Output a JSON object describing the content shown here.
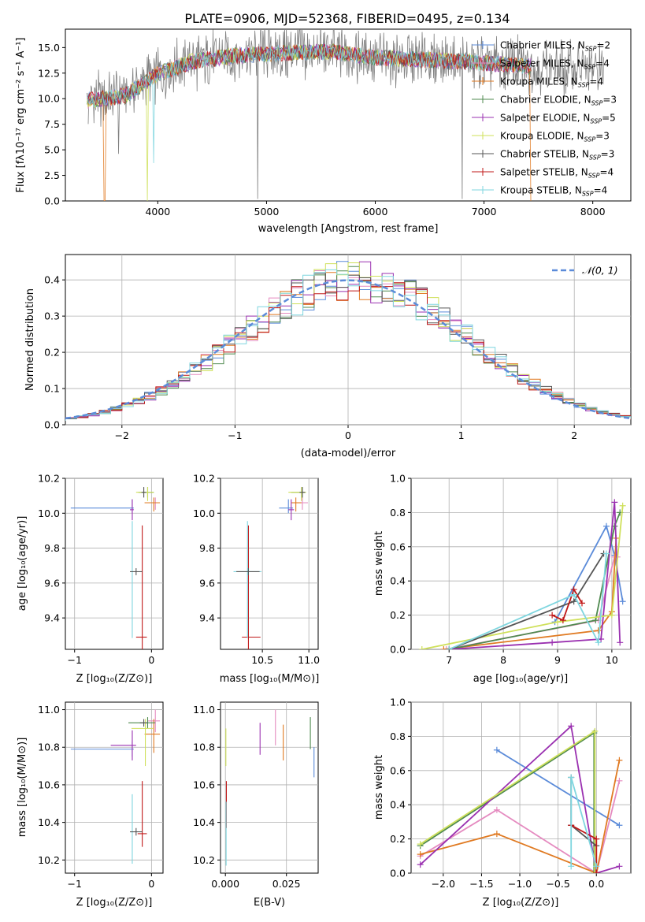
{
  "figure_title": "PLATE=0906, MJD=52368, FIBERID=0495, z=0.134",
  "models": [
    {
      "label": "Chabrier MILES, N",
      "sub": "SSP",
      "suffix": "=2",
      "color": "#5b8bd9"
    },
    {
      "label": "Salpeter MILES, N",
      "sub": "SSP",
      "suffix": "=4",
      "color": "#e58bc0"
    },
    {
      "label": "Kroupa MILES, N",
      "sub": "SSP",
      "suffix": "=4",
      "color": "#e07a22"
    },
    {
      "label": "Chabrier ELODIE, N",
      "sub": "SSP",
      "suffix": "=3",
      "color": "#4f8a4f"
    },
    {
      "label": "Salpeter ELODIE, N",
      "sub": "SSP",
      "suffix": "=5",
      "color": "#9a30b0"
    },
    {
      "label": "Kroupa ELODIE, N",
      "sub": "SSP",
      "suffix": "=3",
      "color": "#cfe05a"
    },
    {
      "label": "Chabrier STELIB, N",
      "sub": "SSP",
      "suffix": "=3",
      "color": "#555555"
    },
    {
      "label": "Salpeter STELIB, N",
      "sub": "SSP",
      "suffix": "=4",
      "color": "#c01818"
    },
    {
      "label": "Kroupa STELIB, N",
      "sub": "SSP",
      "suffix": "=4",
      "color": "#7fd6df"
    }
  ],
  "chart_data": [
    {
      "id": "spectrum",
      "type": "line",
      "title": "PLATE=0906, MJD=52368, FIBERID=0495, z=0.134",
      "xlabel": "wavelength [Angstrom, rest frame]",
      "ylabel": "Flux [fλ10⁻¹⁷ erg cm⁻² s⁻¹ A⁻¹]",
      "xlim": [
        3150,
        8350
      ],
      "ylim": [
        0,
        16.8
      ],
      "xticks": [
        4000,
        5000,
        6000,
        7000,
        8000
      ],
      "yticks": [
        0.0,
        2.5,
        5.0,
        7.5,
        10.0,
        12.5,
        15.0
      ],
      "data_color": "#808080",
      "data_range": [
        3360,
        8100
      ],
      "model_range": [
        3350,
        7430
      ],
      "continuum": [
        [
          3360,
          9.8
        ],
        [
          3700,
          10.3
        ],
        [
          4000,
          12.4
        ],
        [
          4300,
          13.6
        ],
        [
          4700,
          14.2
        ],
        [
          5200,
          14.5
        ],
        [
          5600,
          14.6
        ],
        [
          6000,
          14.0
        ],
        [
          6500,
          13.8
        ],
        [
          7000,
          13.5
        ],
        [
          7500,
          13.1
        ],
        [
          8100,
          12.8
        ]
      ],
      "legend_position": "right"
    },
    {
      "id": "residuals",
      "type": "histogram",
      "xlabel": "(data-model)/error",
      "ylabel": "Normed distribution",
      "xlim": [
        -2.5,
        2.5
      ],
      "ylim": [
        0,
        0.47
      ],
      "xticks": [
        -2,
        -1,
        0,
        1,
        2
      ],
      "yticks": [
        0.0,
        0.1,
        0.2,
        0.3,
        0.4
      ],
      "bin_width": 0.1,
      "reference_label": "𝒩(0, 1)",
      "reference_color": "#5b8bd9",
      "legend_position": "top-right",
      "grid": true
    },
    {
      "id": "age-vs-Z",
      "type": "errorbar",
      "xlabel": "Z [log₁₀(Z/Z⊙)]",
      "ylabel": "age  [log₁₀(age/yr)]",
      "xlim": [
        -1.12,
        0.15
      ],
      "ylim": [
        9.22,
        10.2
      ],
      "xticks": [
        -1,
        0
      ],
      "yticks": [
        9.4,
        9.6,
        9.8,
        10.0,
        10.2
      ],
      "points": [
        {
          "m": 0,
          "x": -0.25,
          "y": 10.03,
          "xerr": [
            0.8,
            0.02
          ],
          "yerr": [
            0.03,
            0.05
          ]
        },
        {
          "m": 1,
          "x": 0.05,
          "y": 10.06,
          "xerr": [
            0.1,
            0.06
          ],
          "yerr": [
            0.04,
            0.03
          ]
        },
        {
          "m": 2,
          "x": 0.03,
          "y": 10.06,
          "xerr": [
            0.12,
            0.08
          ],
          "yerr": [
            0.05,
            0.03
          ]
        },
        {
          "m": 3,
          "x": -0.05,
          "y": 10.12,
          "xerr": [
            0.12,
            0.08
          ],
          "yerr": [
            0.03,
            0.03
          ]
        },
        {
          "m": 4,
          "x": -0.25,
          "y": 10.02,
          "xerr": [
            0.03,
            0.02
          ],
          "yerr": [
            0.06,
            0.06
          ]
        },
        {
          "m": 5,
          "x": -0.05,
          "y": 10.12,
          "xerr": [
            0.15,
            0.08
          ],
          "yerr": [
            0.05,
            0.03
          ]
        },
        {
          "m": 6,
          "x": -0.1,
          "y": 10.12,
          "xerr": [
            0.03,
            0.03
          ],
          "yerr": [
            0.03,
            0.03
          ]
        },
        {
          "m": 7,
          "x": -0.12,
          "y": 9.29,
          "xerr": [
            0.08,
            0.06
          ],
          "yerr": [
            0.2,
            0.64
          ]
        },
        {
          "m": 8,
          "x": -0.25,
          "y": 9.665,
          "xerr": [
            0.02,
            0.02
          ],
          "yerr": [
            0.38,
            0.29
          ]
        },
        {
          "m": 6,
          "x": -0.2,
          "y": 9.665,
          "xerr": [
            0.08,
            0.08
          ],
          "yerr": [
            0.02,
            0.02
          ]
        }
      ]
    },
    {
      "id": "age-vs-mass",
      "type": "errorbar",
      "xlabel": "mass [log₁₀(M/M⊙)]",
      "ylabel": "",
      "xlim": [
        10.05,
        11.1
      ],
      "ylim": [
        9.22,
        10.2
      ],
      "xticks": [
        10.5,
        11.0
      ],
      "yticks": [
        9.4,
        9.6,
        9.8,
        10.0,
        10.2
      ],
      "points": [
        {
          "m": 0,
          "x": 10.78,
          "y": 10.03,
          "xerr": [
            0.1,
            0.05
          ],
          "yerr": [
            0.03,
            0.05
          ]
        },
        {
          "m": 1,
          "x": 10.93,
          "y": 10.06,
          "xerr": [
            0.1,
            0.06
          ],
          "yerr": [
            0.04,
            0.03
          ]
        },
        {
          "m": 2,
          "x": 10.86,
          "y": 10.06,
          "xerr": [
            0.05,
            0.06
          ],
          "yerr": [
            0.05,
            0.03
          ]
        },
        {
          "m": 3,
          "x": 10.93,
          "y": 10.12,
          "xerr": [
            0.12,
            0.03
          ],
          "yerr": [
            0.03,
            0.03
          ]
        },
        {
          "m": 4,
          "x": 10.81,
          "y": 10.02,
          "xerr": [
            0.03,
            0.03
          ],
          "yerr": [
            0.06,
            0.06
          ]
        },
        {
          "m": 5,
          "x": 10.92,
          "y": 10.12,
          "xerr": [
            0.14,
            0.05
          ],
          "yerr": [
            0.05,
            0.03
          ]
        },
        {
          "m": 6,
          "x": 10.93,
          "y": 10.12,
          "xerr": [
            0.03,
            0.03
          ],
          "yerr": [
            0.03,
            0.03
          ]
        },
        {
          "m": 7,
          "x": 10.35,
          "y": 9.29,
          "xerr": [
            0.07,
            0.13
          ],
          "yerr": [
            0.2,
            0.64
          ]
        },
        {
          "m": 8,
          "x": 10.34,
          "y": 9.665,
          "xerr": [
            0.15,
            0.15
          ],
          "yerr": [
            0.38,
            0.29
          ]
        },
        {
          "m": 6,
          "x": 10.35,
          "y": 9.665,
          "xerr": [
            0.13,
            0.12
          ],
          "yerr": [
            0.02,
            0.02
          ]
        }
      ]
    },
    {
      "id": "weight-vs-age",
      "type": "line",
      "xlabel": "age  [log₁₀(age/yr)]",
      "ylabel": "mass weight",
      "xlim": [
        6.3,
        10.35
      ],
      "ylim": [
        0,
        1.0
      ],
      "xticks": [
        7,
        8,
        9,
        10
      ],
      "yticks": [
        0.0,
        0.2,
        0.4,
        0.6,
        0.8,
        1.0
      ],
      "grid": true,
      "series": [
        {
          "m": 0,
          "points": [
            [
              8.95,
              0.16
            ],
            [
              9.9,
              0.72
            ],
            [
              10.05,
              0.55
            ],
            [
              10.2,
              0.28
            ]
          ]
        },
        {
          "m": 1,
          "points": [
            [
              6.95,
              0.0
            ],
            [
              9.75,
              0.17
            ],
            [
              10.05,
              0.54
            ],
            [
              10.1,
              0.54
            ]
          ]
        },
        {
          "m": 2,
          "points": [
            [
              6.9,
              0.0
            ],
            [
              9.75,
              0.11
            ],
            [
              10.0,
              0.22
            ],
            [
              10.08,
              0.65
            ]
          ]
        },
        {
          "m": 3,
          "points": [
            [
              7.0,
              0.0
            ],
            [
              9.7,
              0.17
            ],
            [
              10.05,
              0.72
            ],
            [
              10.15,
              0.8
            ]
          ]
        },
        {
          "m": 4,
          "points": [
            [
              7.0,
              0.0
            ],
            [
              8.9,
              0.04
            ],
            [
              9.8,
              0.06
            ],
            [
              10.05,
              0.86
            ],
            [
              10.15,
              0.04
            ]
          ]
        },
        {
          "m": 5,
          "points": [
            [
              6.5,
              0.0
            ],
            [
              9.0,
              0.16
            ],
            [
              10.0,
              0.2
            ],
            [
              10.2,
              0.84
            ]
          ]
        },
        {
          "m": 6,
          "points": [
            [
              7.0,
              0.0
            ],
            [
              9.3,
              0.28
            ],
            [
              9.85,
              0.56
            ]
          ]
        },
        {
          "m": 7,
          "points": [
            [
              8.9,
              0.2
            ],
            [
              9.1,
              0.17
            ],
            [
              9.3,
              0.35
            ],
            [
              9.45,
              0.27
            ]
          ]
        },
        {
          "m": 8,
          "points": [
            [
              7.0,
              0.0
            ],
            [
              9.3,
              0.32
            ],
            [
              9.75,
              0.04
            ],
            [
              9.9,
              0.56
            ]
          ]
        }
      ]
    },
    {
      "id": "mass-vs-Z",
      "type": "errorbar",
      "xlabel": "Z [log₁₀(Z/Z⊙)]",
      "ylabel": "mass [log₁₀(M/M⊙)]",
      "xlim": [
        -1.12,
        0.15
      ],
      "ylim": [
        10.13,
        11.04
      ],
      "xticks": [
        -1,
        0
      ],
      "yticks": [
        10.2,
        10.4,
        10.6,
        10.8,
        11.0
      ],
      "points": [
        {
          "m": 0,
          "x": -0.25,
          "y": 10.79,
          "xerr": [
            0.8,
            0.02
          ],
          "yerr": [
            0.04,
            0.04
          ]
        },
        {
          "m": 1,
          "x": 0.05,
          "y": 10.94,
          "xerr": [
            0.1,
            0.06
          ],
          "yerr": [
            0.06,
            0.06
          ]
        },
        {
          "m": 2,
          "x": 0.03,
          "y": 10.87,
          "xerr": [
            0.12,
            0.08
          ],
          "yerr": [
            0.1,
            0.08
          ]
        },
        {
          "m": 3,
          "x": -0.05,
          "y": 10.93,
          "xerr": [
            0.25,
            0.1
          ],
          "yerr": [
            0.03,
            0.03
          ]
        },
        {
          "m": 4,
          "x": -0.25,
          "y": 10.81,
          "xerr": [
            0.28,
            0.05
          ],
          "yerr": [
            0.08,
            0.08
          ]
        },
        {
          "m": 5,
          "x": -0.08,
          "y": 10.9,
          "xerr": [
            0.18,
            0.1
          ],
          "yerr": [
            0.2,
            0.05
          ]
        },
        {
          "m": 6,
          "x": -0.1,
          "y": 10.93,
          "xerr": [
            0.05,
            0.05
          ],
          "yerr": [
            0.02,
            0.02
          ]
        },
        {
          "m": 7,
          "x": -0.12,
          "y": 10.34,
          "xerr": [
            0.06,
            0.06
          ],
          "yerr": [
            0.07,
            0.28
          ]
        },
        {
          "m": 8,
          "x": -0.25,
          "y": 10.35,
          "xerr": [
            0.02,
            0.02
          ],
          "yerr": [
            0.17,
            0.2
          ]
        },
        {
          "m": 6,
          "x": -0.2,
          "y": 10.35,
          "xerr": [
            0.08,
            0.08
          ],
          "yerr": [
            0.02,
            0.02
          ]
        }
      ]
    },
    {
      "id": "mass-vs-ebv",
      "type": "errorbar",
      "xlabel": "E(B-V)",
      "ylabel": "",
      "xlim": [
        -0.002,
        0.038
      ],
      "ylim": [
        10.13,
        11.04
      ],
      "xticks": [
        0.0,
        0.025
      ],
      "yticks": [
        10.2,
        10.4,
        10.6,
        10.8,
        11.0
      ],
      "points": [
        {
          "m": 0,
          "x": 0.0363,
          "y": 10.72,
          "xerr": [
            0,
            0
          ],
          "yerr": [
            0.08,
            0.08
          ]
        },
        {
          "m": 1,
          "x": 0.0205,
          "y": 10.91,
          "xerr": [
            0,
            0
          ],
          "yerr": [
            0.1,
            0.09
          ]
        },
        {
          "m": 2,
          "x": 0.0237,
          "y": 10.83,
          "xerr": [
            0,
            0
          ],
          "yerr": [
            0.1,
            0.09
          ]
        },
        {
          "m": 3,
          "x": 0.0348,
          "y": 10.88,
          "xerr": [
            0,
            0
          ],
          "yerr": [
            0.09,
            0.08
          ]
        },
        {
          "m": 4,
          "x": 0.0142,
          "y": 10.84,
          "xerr": [
            0,
            0
          ],
          "yerr": [
            0.08,
            0.09
          ]
        },
        {
          "m": 5,
          "x": 0.0002,
          "y": 10.8,
          "xerr": [
            0,
            0
          ],
          "yerr": [
            0.1,
            0.1
          ]
        },
        {
          "m": 7,
          "x": 0.0004,
          "y": 10.5,
          "xerr": [
            0,
            0
          ],
          "yerr": [
            0.13,
            0.12
          ]
        },
        {
          "m": 8,
          "x": 0.0003,
          "y": 10.34,
          "xerr": [
            0,
            0
          ],
          "yerr": [
            0.17,
            0.17
          ]
        }
      ]
    },
    {
      "id": "weight-vs-Z",
      "type": "line",
      "xlabel": "Z [log₁₀(Z/Z⊙)]",
      "ylabel": "mass weight",
      "xlim": [
        -2.42,
        0.45
      ],
      "ylim": [
        0,
        1.0
      ],
      "xticks": [
        -2.0,
        -1.5,
        -1.0,
        -0.5,
        0.0
      ],
      "yticks": [
        0.0,
        0.2,
        0.4,
        0.6,
        0.8,
        1.0
      ],
      "grid": true,
      "series": [
        {
          "m": 0,
          "points": [
            [
              -1.3,
              0.72
            ],
            [
              0.3,
              0.28
            ]
          ]
        },
        {
          "m": 1,
          "points": [
            [
              -2.3,
              0.1
            ],
            [
              -1.3,
              0.37
            ],
            [
              0.0,
              0.0
            ],
            [
              0.3,
              0.54
            ]
          ]
        },
        {
          "m": 2,
          "points": [
            [
              -2.3,
              0.11
            ],
            [
              -1.3,
              0.23
            ],
            [
              0.0,
              0.0
            ],
            [
              0.3,
              0.66
            ]
          ]
        },
        {
          "m": 3,
          "points": [
            [
              -2.3,
              0.16
            ],
            [
              -0.03,
              0.82
            ],
            [
              -0.03,
              0.0
            ]
          ]
        },
        {
          "m": 4,
          "points": [
            [
              -2.3,
              0.05
            ],
            [
              -0.33,
              0.86
            ],
            [
              0.0,
              0.0
            ],
            [
              0.3,
              0.04
            ]
          ]
        },
        {
          "m": 5,
          "points": [
            [
              -2.3,
              0.17
            ],
            [
              -0.02,
              0.83
            ],
            [
              -0.02,
              0.0
            ]
          ]
        },
        {
          "m": 6,
          "points": [
            [
              -0.33,
              0.56
            ],
            [
              -0.33,
              0.28
            ],
            [
              0.0,
              0.16
            ]
          ]
        },
        {
          "m": 7,
          "points": [
            [
              -0.33,
              0.28
            ],
            [
              0.0,
              0.2
            ],
            [
              0.0,
              0.0
            ]
          ]
        },
        {
          "m": 8,
          "points": [
            [
              -0.33,
              0.04
            ],
            [
              -0.33,
              0.56
            ],
            [
              0.0,
              0.04
            ]
          ]
        }
      ]
    }
  ]
}
